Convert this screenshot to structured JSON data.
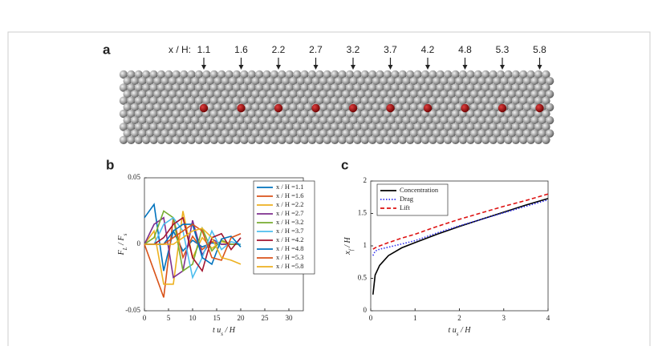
{
  "panel_a": {
    "label": "a",
    "positions_label": "x / H:",
    "positions": [
      1.1,
      1.6,
      2.2,
      2.7,
      3.2,
      3.7,
      4.2,
      4.8,
      5.3,
      5.8
    ]
  },
  "chart_data": [
    {
      "type": "line",
      "label": "b",
      "x_label": [
        "t u",
        "s",
        " / H"
      ],
      "y_label": [
        "F",
        "L",
        " / F",
        "s"
      ],
      "x": [
        0,
        2,
        4,
        6,
        8,
        10,
        12,
        14,
        16,
        18,
        20
      ],
      "xlim": [
        0,
        33
      ],
      "xticks": [
        0,
        5,
        10,
        15,
        20,
        25,
        30
      ],
      "ylim": [
        -0.05,
        0.05
      ],
      "yticks": [
        -0.05,
        0,
        0.05
      ],
      "legend": "upper right",
      "series": [
        {
          "name": "x / H =1.1",
          "color": "#0072BD",
          "values": [
            0.02,
            0.03,
            -0.02,
            0.01,
            -0.005,
            0.003,
            -0.002,
            0.001,
            0,
            0,
            0
          ]
        },
        {
          "name": "x / H =1.6",
          "color": "#D95319",
          "values": [
            0,
            -0.02,
            -0.04,
            0.02,
            -0.01,
            0.006,
            -0.004,
            0.002,
            0,
            0,
            0
          ]
        },
        {
          "name": "x / H =2.2",
          "color": "#EDB120",
          "values": [
            0,
            0.01,
            -0.03,
            -0.03,
            0.025,
            -0.01,
            0.005,
            -0.003,
            0.002,
            0,
            0
          ]
        },
        {
          "name": "x / H =2.7",
          "color": "#7E2F8E",
          "values": [
            0,
            0.015,
            0.02,
            -0.025,
            -0.02,
            0.018,
            -0.008,
            0.004,
            0,
            0,
            0
          ]
        },
        {
          "name": "x / H =3.2",
          "color": "#77AC30",
          "values": [
            0,
            0.005,
            0.025,
            0.02,
            -0.02,
            -0.015,
            0.012,
            -0.005,
            0.003,
            0,
            0
          ]
        },
        {
          "name": "x / H =3.7",
          "color": "#4DBEEE",
          "values": [
            0,
            0,
            0.015,
            0.02,
            0.01,
            -0.025,
            -0.01,
            0.01,
            -0.004,
            0.002,
            0
          ]
        },
        {
          "name": "x / H =4.2",
          "color": "#A2142F",
          "values": [
            0,
            0,
            0.005,
            0.015,
            0.02,
            -0.01,
            -0.02,
            0.005,
            0.008,
            -0.004,
            0.005
          ]
        },
        {
          "name": "x / H =4.8",
          "color": "#0072BD",
          "values": [
            0,
            0,
            0,
            0.01,
            0.015,
            0.015,
            -0.01,
            -0.015,
            0.004,
            0.006,
            -0.002
          ]
        },
        {
          "name": "x / H =5.3",
          "color": "#D95319",
          "values": [
            0,
            0,
            0,
            0.005,
            0.01,
            0.015,
            0.01,
            -0.01,
            -0.012,
            0.005,
            0.008
          ]
        },
        {
          "name": "x / H =5.8",
          "color": "#EDB120",
          "values": [
            0,
            0,
            0,
            0,
            0.005,
            0.01,
            0.012,
            0.005,
            -0.01,
            -0.012,
            -0.015
          ]
        }
      ]
    },
    {
      "type": "line",
      "label": "c",
      "x_label": [
        "t u",
        "s",
        " / H"
      ],
      "y_label": [
        "x",
        "f",
        " / H"
      ],
      "x": [
        0.05,
        0.1,
        0.2,
        0.4,
        0.7,
        1,
        1.5,
        2,
        2.5,
        3,
        3.5,
        4
      ],
      "xlim": [
        0,
        4
      ],
      "xticks": [
        0,
        1,
        2,
        3,
        4
      ],
      "ylim": [
        0,
        2
      ],
      "yticks": [
        0,
        0.5,
        1,
        1.5,
        2
      ],
      "legend": "upper left",
      "series": [
        {
          "name": "Concentration",
          "color": "#000000",
          "dash": "solid",
          "values": [
            0.25,
            0.55,
            0.7,
            0.85,
            0.97,
            1.05,
            1.18,
            1.3,
            1.41,
            1.52,
            1.63,
            1.73
          ]
        },
        {
          "name": "Drag",
          "color": "#3333ee",
          "dash": "dotted",
          "values": [
            0.85,
            0.92,
            0.95,
            0.98,
            1.03,
            1.08,
            1.2,
            1.31,
            1.41,
            1.51,
            1.61,
            1.71
          ]
        },
        {
          "name": "Lift",
          "color": "#dd1111",
          "dash": "dashed",
          "values": [
            0.95,
            0.97,
            1.0,
            1.05,
            1.12,
            1.18,
            1.3,
            1.41,
            1.51,
            1.61,
            1.7,
            1.8
          ]
        }
      ]
    }
  ]
}
